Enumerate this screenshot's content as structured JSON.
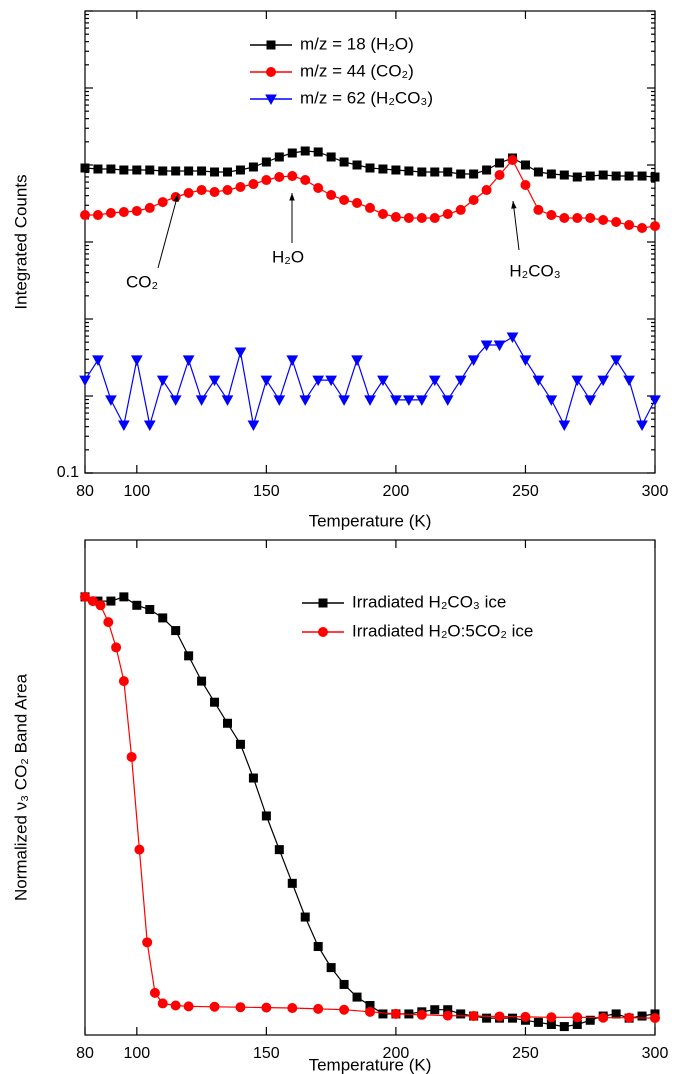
{
  "chart_data": [
    {
      "type": "line",
      "xlabel": "Temperature (K)",
      "ylabel": "Integrated Counts",
      "log_y": true,
      "xlim": [
        80,
        300
      ],
      "xticks": [
        80,
        100,
        150,
        200,
        250,
        300
      ],
      "ylim": [
        0.1,
        100000
      ],
      "yticks": [
        0.1
      ],
      "series": [
        {
          "name": "m/z = 18 (H₂O)",
          "color": "#000000",
          "marker": "square",
          "x": [
            80,
            85,
            90,
            95,
            100,
            105,
            110,
            115,
            120,
            125,
            130,
            135,
            140,
            145,
            150,
            155,
            160,
            165,
            170,
            175,
            180,
            185,
            190,
            195,
            200,
            205,
            210,
            215,
            220,
            225,
            230,
            235,
            240,
            245,
            250,
            255,
            260,
            265,
            270,
            275,
            280,
            285,
            290,
            295,
            300
          ],
          "values": [
            914,
            887,
            887,
            861,
            861,
            861,
            836,
            836,
            836,
            836,
            811,
            811,
            861,
            942,
            1094,
            1271,
            1432,
            1520,
            1476,
            1271,
            1094,
            1000,
            914,
            887,
            861,
            836,
            811,
            811,
            811,
            764,
            764,
            861,
            1062,
            1233,
            1000,
            811,
            764,
            741,
            698,
            719,
            741,
            719,
            719,
            719,
            698
          ]
        },
        {
          "name": "m/z = 44 (CO₂)",
          "color": "#ff0000",
          "marker": "circle",
          "x": [
            80,
            85,
            90,
            95,
            100,
            105,
            110,
            115,
            120,
            125,
            130,
            135,
            140,
            145,
            150,
            155,
            160,
            165,
            170,
            175,
            180,
            185,
            190,
            195,
            200,
            205,
            210,
            215,
            220,
            225,
            230,
            235,
            240,
            245,
            250,
            255,
            260,
            265,
            270,
            275,
            280,
            285,
            290,
            295,
            300
          ],
          "values": [
            224,
            224,
            238,
            245,
            253,
            277,
            330,
            384,
            433,
            473,
            446,
            473,
            518,
            566,
            638,
            698,
            719,
            638,
            503,
            407,
            351,
            321,
            277,
            231,
            211,
            205,
            205,
            205,
            231,
            261,
            351,
            473,
            741,
            1161,
            550,
            261,
            224,
            205,
            205,
            205,
            193,
            182,
            166,
            152,
            161
          ]
        },
        {
          "name": "m/z = 62 (H₂CO₃)",
          "color": "#0000ff",
          "marker": "triangle-down",
          "x": [
            80,
            85,
            90,
            95,
            100,
            105,
            110,
            115,
            120,
            125,
            130,
            135,
            140,
            145,
            150,
            155,
            160,
            165,
            170,
            175,
            180,
            185,
            190,
            195,
            200,
            205,
            210,
            215,
            220,
            225,
            230,
            235,
            240,
            245,
            250,
            255,
            260,
            265,
            270,
            275,
            280,
            285,
            290,
            295,
            300
          ],
          "values": [
            1.61,
            2.94,
            0.89,
            0.42,
            2.94,
            0.42,
            1.61,
            0.89,
            2.94,
            0.89,
            1.61,
            0.89,
            3.73,
            0.42,
            1.61,
            0.89,
            2.94,
            0.89,
            1.61,
            1.61,
            0.89,
            2.94,
            0.89,
            1.61,
            0.89,
            0.89,
            0.89,
            1.61,
            0.89,
            1.61,
            2.94,
            4.59,
            4.59,
            5.84,
            2.94,
            1.61,
            0.89,
            0.42,
            1.61,
            0.89,
            1.61,
            2.94,
            1.61,
            0.42,
            0.89
          ]
        }
      ],
      "annotations": [
        "CO₂",
        "H₂O",
        "H₂CO₃"
      ]
    },
    {
      "type": "line",
      "xlabel": "Temperature (K)",
      "ylabel": "Normalized ν₃ CO₂ Band Area",
      "xlim": [
        80,
        300
      ],
      "xticks": [
        80,
        100,
        150,
        200,
        250,
        300
      ],
      "ylim": [
        -0.04,
        1.135
      ],
      "series": [
        {
          "name": "Irradiated H₂CO₃ ice",
          "color": "#000000",
          "marker": "square",
          "x": [
            80,
            85,
            90,
            95,
            100,
            105,
            110,
            115,
            120,
            125,
            130,
            135,
            140,
            145,
            150,
            155,
            160,
            165,
            170,
            175,
            180,
            185,
            190,
            195,
            200,
            205,
            210,
            215,
            220,
            225,
            230,
            235,
            240,
            245,
            250,
            255,
            260,
            265,
            270,
            275,
            280,
            285,
            290,
            295,
            300
          ],
          "values": [
            1.0,
            0.99,
            0.99,
            1.0,
            0.98,
            0.97,
            0.95,
            0.92,
            0.86,
            0.8,
            0.75,
            0.7,
            0.65,
            0.57,
            0.48,
            0.4,
            0.32,
            0.24,
            0.17,
            0.12,
            0.08,
            0.05,
            0.03,
            0.01,
            0.01,
            0.01,
            0.015,
            0.02,
            0.02,
            0.01,
            0.005,
            0,
            0,
            0,
            -0.005,
            -0.01,
            -0.015,
            -0.02,
            -0.015,
            -0.005,
            0.005,
            0.01,
            0,
            0.005,
            0.01
          ]
        },
        {
          "name": "Irradiated H₂O:5CO₂ ice",
          "color": "#ff0000",
          "marker": "circle",
          "x": [
            80,
            83,
            86,
            89,
            92,
            95,
            98,
            101,
            104,
            107,
            110,
            115,
            120,
            130,
            140,
            150,
            160,
            170,
            180,
            190,
            200,
            210,
            220,
            230,
            240,
            250,
            260,
            270,
            280,
            290,
            300
          ],
          "values": [
            1.0,
            0.99,
            0.98,
            0.94,
            0.88,
            0.8,
            0.62,
            0.4,
            0.18,
            0.06,
            0.035,
            0.03,
            0.028,
            0.027,
            0.026,
            0.025,
            0.024,
            0.022,
            0.02,
            0.015,
            0.01,
            0.008,
            0.006,
            0.005,
            0.004,
            0.003,
            0.002,
            0.002,
            0.001,
            0.001,
            0
          ]
        }
      ]
    }
  ]
}
